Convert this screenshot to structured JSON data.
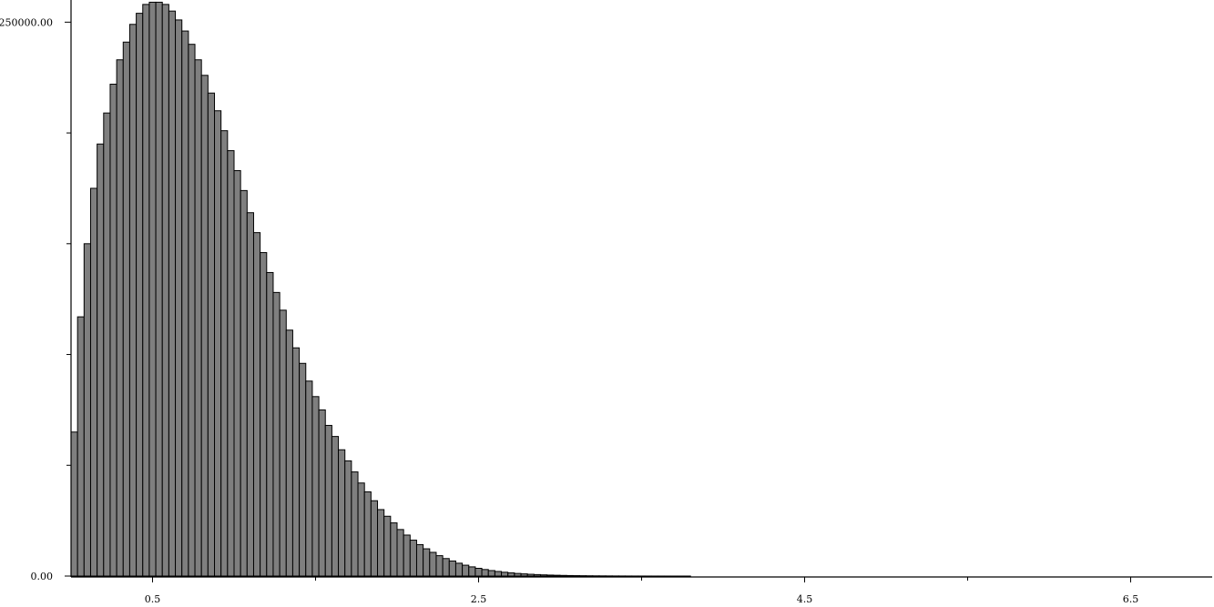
{
  "chart_data": {
    "type": "bar",
    "title": "",
    "xlabel": "",
    "ylabel": "",
    "x_ticks": [
      "0.5",
      "2.5",
      "4.5",
      "6.5"
    ],
    "x_tick_values": [
      0.5,
      2.5,
      4.5,
      6.5
    ],
    "x_minor_tick_values": [
      1.5,
      3.5,
      5.5
    ],
    "y_ticks": [
      "250000.00",
      "0.00"
    ],
    "y_tick_values": [
      250000,
      0
    ],
    "y_minor_tick_values": [
      50000,
      100000,
      150000,
      200000
    ],
    "xlim": [
      0.0,
      7.0
    ],
    "ylim": [
      0,
      260000
    ],
    "bin_width": 0.04,
    "series": [
      {
        "values": [
          65000,
          117000,
          150000,
          175000,
          195000,
          209000,
          222000,
          233000,
          241000,
          249000,
          254000,
          258000,
          259000,
          259000,
          258000,
          255000,
          251000,
          246000,
          240000,
          233000,
          226000,
          218000,
          210000,
          201000,
          192000,
          183000,
          174000,
          164000,
          155000,
          146000,
          137000,
          128000,
          120000,
          111000,
          103000,
          96000,
          88000,
          81000,
          75000,
          68000,
          63000,
          57000,
          52000,
          47000,
          42000,
          38000,
          34000,
          30000,
          27000,
          24000,
          21000,
          18500,
          16200,
          14200,
          12300,
          10700,
          9200,
          7900,
          6800,
          5800,
          4900,
          4150,
          3500,
          2950,
          2480,
          2070,
          1720,
          1430,
          1180,
          980,
          800,
          660,
          540,
          440,
          360,
          290,
          235,
          190,
          150,
          120,
          96,
          76,
          60,
          47,
          37,
          29,
          22,
          17,
          13,
          10,
          8,
          6,
          5,
          4,
          3,
          2,
          2,
          1,
          1,
          1,
          1,
          1,
          1,
          0,
          0,
          0,
          0,
          0,
          0,
          0,
          0,
          0,
          0,
          0,
          0,
          0,
          0,
          0,
          0,
          0,
          0,
          0,
          0,
          0,
          0,
          0,
          0,
          0,
          0,
          0,
          0,
          0,
          0,
          0,
          0,
          0,
          0,
          0,
          0,
          0,
          0,
          0,
          0,
          0,
          0,
          0,
          0,
          0,
          0,
          0,
          0,
          0,
          0,
          0,
          0,
          0,
          0,
          0,
          0,
          0,
          0,
          0,
          0,
          0,
          0,
          0,
          0
        ]
      }
    ],
    "bar_fill": "#7f7f7f",
    "bar_stroke": "#000000",
    "grid": false,
    "legend": "none"
  }
}
